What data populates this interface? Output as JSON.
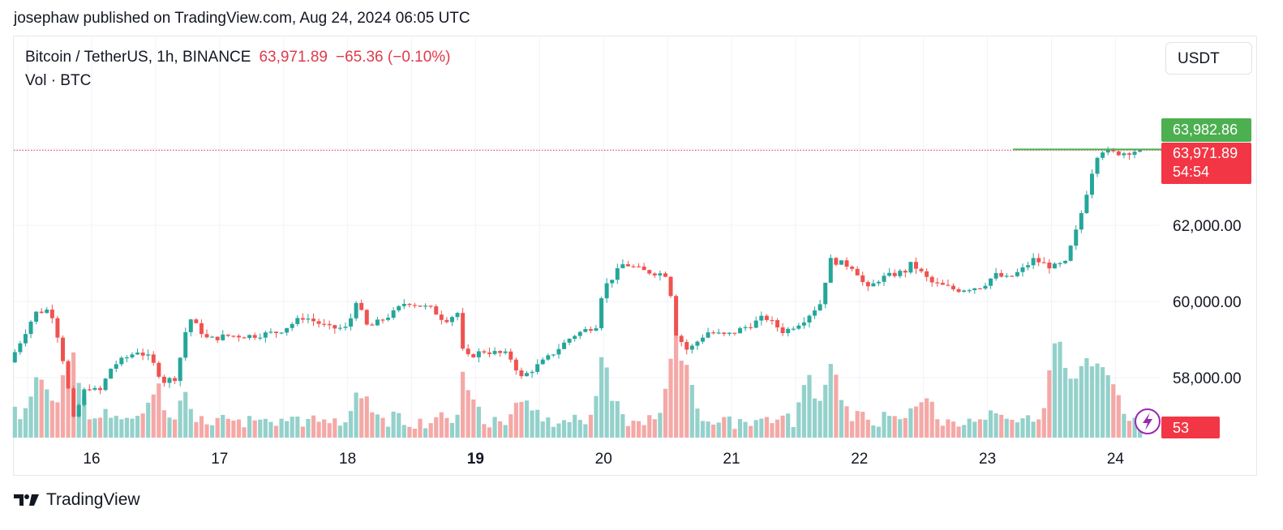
{
  "publisher_line": "josephaw published on TradingView.com, Aug 24, 2024 06:05 UTC",
  "legend": {
    "symbol": "Bitcoin / TetherUS, 1h, BINANCE",
    "price": "63,971.89",
    "change": "−65.36 (−0.10%)",
    "volume_label": "Vol · BTC"
  },
  "currency_button": "USDT",
  "footer_brand": "TradingView",
  "colors": {
    "up": "#26a69a",
    "down": "#ef5350",
    "up_vol": "#94d1cb",
    "down_vol": "#f4a9a7",
    "grid": "#f0f3fa",
    "last_price": "#f23645",
    "high_label": "#4caf50"
  },
  "icons": {
    "brand_logo": "tradingview-logo-icon",
    "lightning": "lightning-icon"
  },
  "chart_data": {
    "type": "candlestick",
    "interval": "1h",
    "y_ticks": [
      58000,
      60000,
      62000
    ],
    "y_tick_labels": [
      "58,000.00",
      "60,000.00",
      "62,000.00"
    ],
    "ylim": [
      55900,
      65200
    ],
    "x_tick_labels": [
      "16",
      "17",
      "18",
      "19",
      "20",
      "21",
      "22",
      "23",
      "24"
    ],
    "x_tick_bold": "19",
    "xlim_days": [
      15.4,
      24.3
    ],
    "price_labels": {
      "high": "63,982.86",
      "last": "63,971.89",
      "countdown": "54:54",
      "volume": "53"
    },
    "last_price": 63971.89,
    "high_price": 63982.86,
    "grid": true,
    "waypoints": [
      [
        15.4,
        58400
      ],
      [
        15.6,
        59700
      ],
      [
        15.72,
        59800
      ],
      [
        15.8,
        58800
      ],
      [
        15.9,
        56900
      ],
      [
        16.0,
        57800
      ],
      [
        16.1,
        57600
      ],
      [
        16.2,
        58300
      ],
      [
        16.4,
        58700
      ],
      [
        16.5,
        58500
      ],
      [
        16.6,
        57900
      ],
      [
        16.7,
        58000
      ],
      [
        16.8,
        59600
      ],
      [
        16.95,
        59000
      ],
      [
        17.1,
        59100
      ],
      [
        17.3,
        59100
      ],
      [
        17.5,
        59200
      ],
      [
        17.7,
        59600
      ],
      [
        17.9,
        59300
      ],
      [
        18.05,
        59300
      ],
      [
        18.1,
        60100
      ],
      [
        18.2,
        59300
      ],
      [
        18.4,
        59700
      ],
      [
        18.5,
        60000
      ],
      [
        18.7,
        59800
      ],
      [
        18.8,
        59500
      ],
      [
        18.9,
        59700
      ],
      [
        18.95,
        58500
      ],
      [
        19.1,
        58700
      ],
      [
        19.3,
        58600
      ],
      [
        19.4,
        58000
      ],
      [
        19.6,
        58500
      ],
      [
        19.8,
        59100
      ],
      [
        20.0,
        59400
      ],
      [
        20.03,
        60300
      ],
      [
        20.2,
        61000
      ],
      [
        20.35,
        60800
      ],
      [
        20.55,
        60700
      ],
      [
        20.6,
        59200
      ],
      [
        20.7,
        58700
      ],
      [
        20.85,
        59200
      ],
      [
        21.0,
        59100
      ],
      [
        21.2,
        59400
      ],
      [
        21.3,
        59600
      ],
      [
        21.45,
        59200
      ],
      [
        21.6,
        59500
      ],
      [
        21.75,
        60000
      ],
      [
        21.8,
        61100
      ],
      [
        22.0,
        60900
      ],
      [
        22.1,
        60300
      ],
      [
        22.2,
        60600
      ],
      [
        22.4,
        60800
      ],
      [
        22.45,
        61000
      ],
      [
        22.6,
        60500
      ],
      [
        22.8,
        60300
      ],
      [
        23.0,
        60400
      ],
      [
        23.1,
        60700
      ],
      [
        23.2,
        60600
      ],
      [
        23.3,
        60800
      ],
      [
        23.4,
        61100
      ],
      [
        23.55,
        60900
      ],
      [
        23.65,
        61000
      ],
      [
        23.75,
        62000
      ],
      [
        23.85,
        63300
      ],
      [
        23.88,
        63700
      ],
      [
        23.92,
        64000
      ],
      [
        24.0,
        63900
      ],
      [
        24.1,
        63900
      ],
      [
        24.22,
        63972
      ]
    ],
    "volume_spikes": [
      [
        15.6,
        1.0
      ],
      [
        15.85,
        0.95
      ],
      [
        16.5,
        0.55
      ],
      [
        18.1,
        0.4
      ],
      [
        18.95,
        0.55
      ],
      [
        19.4,
        0.45
      ],
      [
        20.0,
        0.85
      ],
      [
        20.55,
        1.15
      ],
      [
        20.65,
        0.9
      ],
      [
        21.6,
        0.85
      ],
      [
        21.8,
        0.9
      ],
      [
        22.5,
        0.5
      ],
      [
        23.55,
        2.0
      ],
      [
        23.75,
        1.0
      ],
      [
        23.9,
        1.0
      ],
      [
        24.0,
        0.6
      ]
    ]
  }
}
